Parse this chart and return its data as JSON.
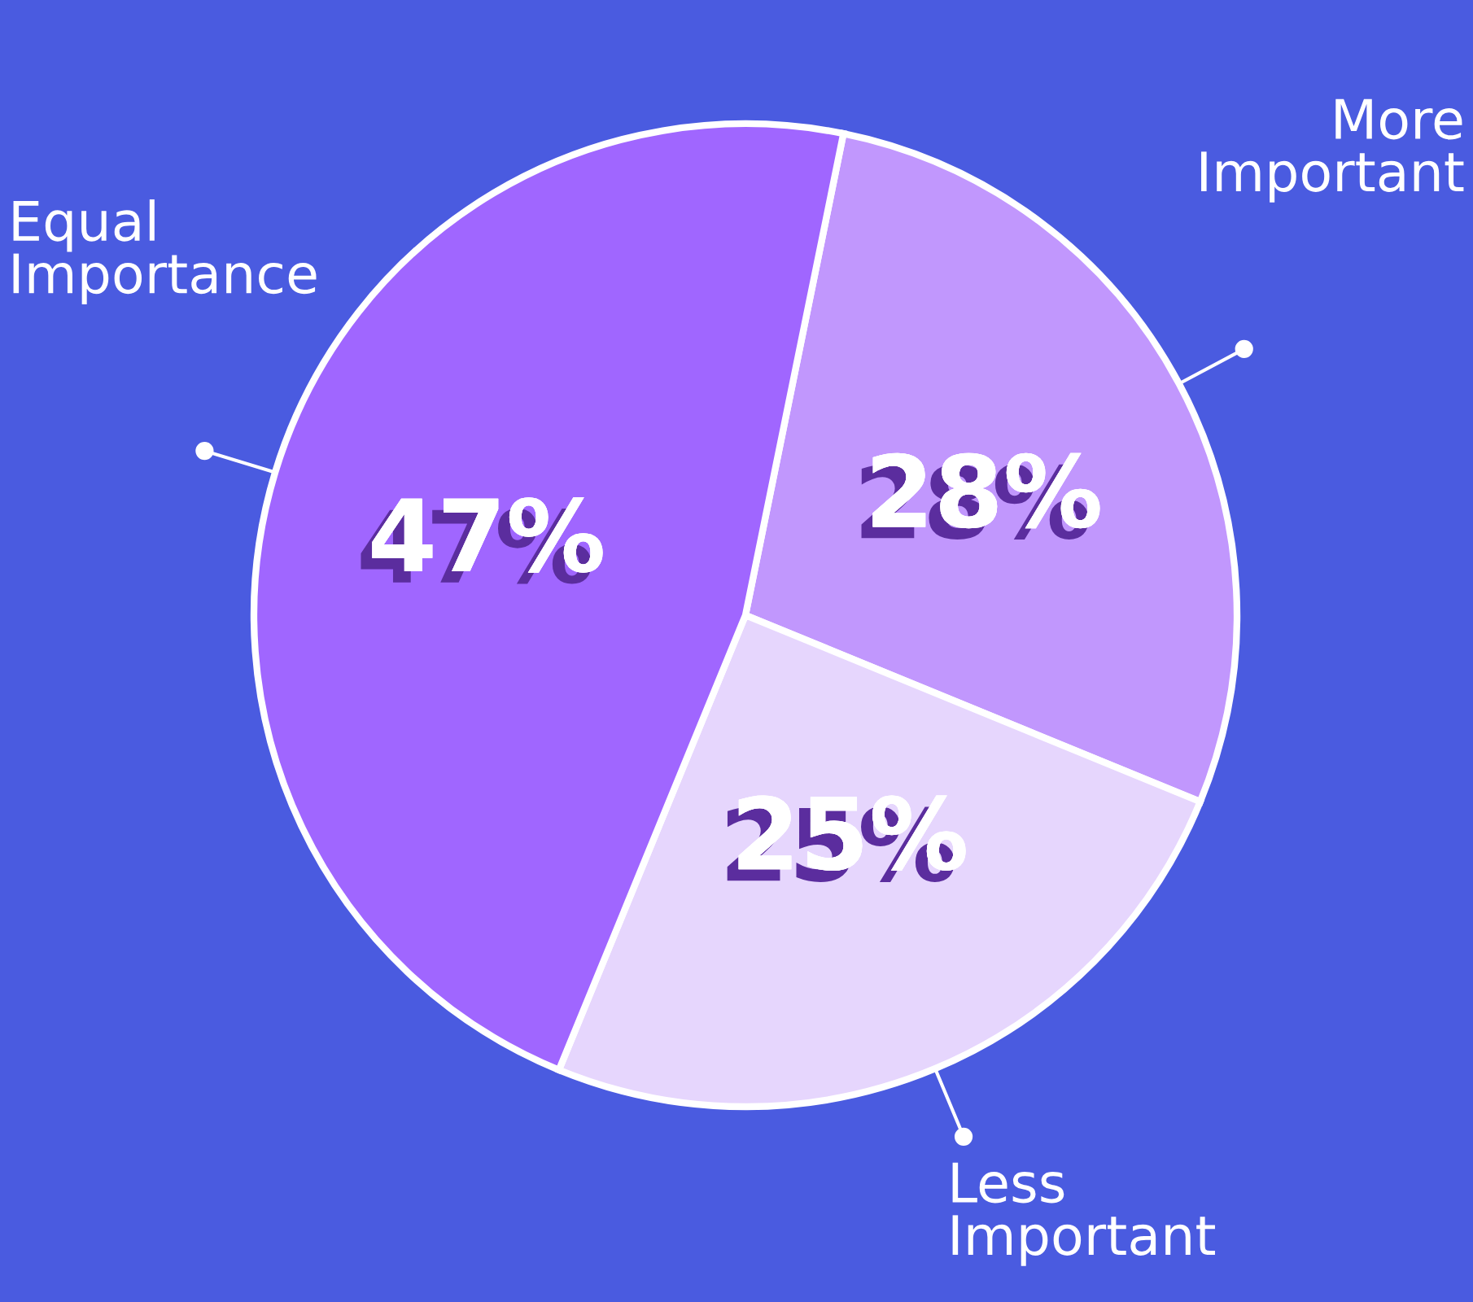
{
  "chart_data": {
    "type": "pie",
    "categories": [
      "More Important",
      "Less Important",
      "Equal Importance"
    ],
    "values": [
      28,
      25,
      47
    ],
    "value_labels": [
      "28%",
      "25%",
      "47%"
    ],
    "colors": [
      "#c197fd",
      "#e6d6fd",
      "#a066ff"
    ]
  }
}
